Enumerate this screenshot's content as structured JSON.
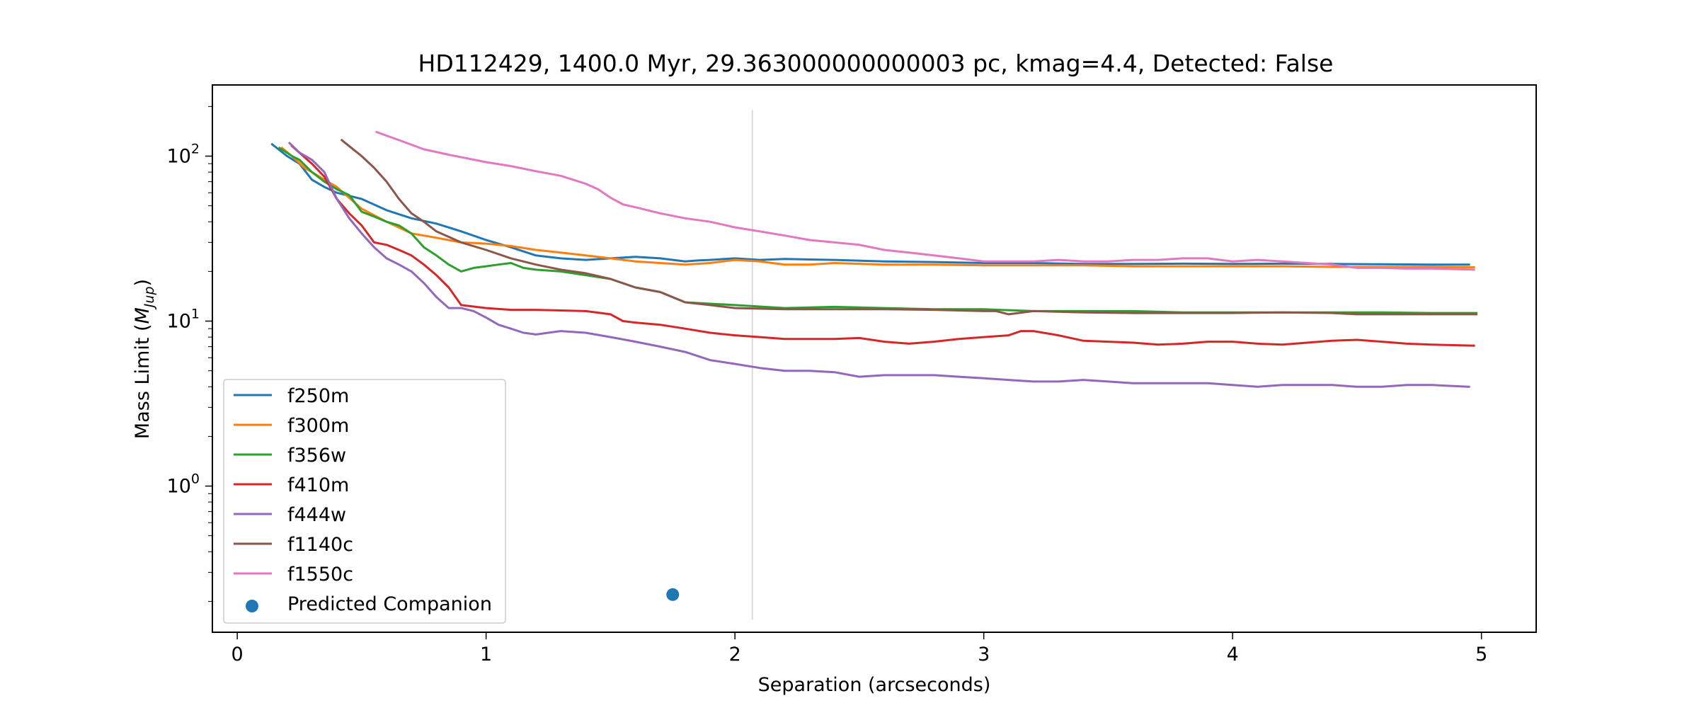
{
  "chart_data": {
    "type": "line",
    "title": "HD112429, 1400.0 Myr, 29.363000000000003 pc, kmag=4.4, Detected: False",
    "xlabel": "Separation (arcseconds)",
    "ylabel_main": "Mass Limit (",
    "ylabel_math": "M",
    "ylabel_sub": "Jup",
    "ylabel_close": ")",
    "xlim": [
      -0.1,
      5.22
    ],
    "ylim": [
      0.13,
      270
    ],
    "yscale": "log",
    "x_ticks": [
      {
        "value": 0,
        "label": "0"
      },
      {
        "value": 1,
        "label": "1"
      },
      {
        "value": 2,
        "label": "2"
      },
      {
        "value": 3,
        "label": "3"
      },
      {
        "value": 4,
        "label": "4"
      },
      {
        "value": 5,
        "label": "5"
      }
    ],
    "y_ticks": [
      {
        "value": 1,
        "base": "10",
        "exp": "0"
      },
      {
        "value": 10,
        "base": "10",
        "exp": "1"
      },
      {
        "value": 100,
        "base": "10",
        "exp": "2"
      }
    ],
    "vline": {
      "x": 2.07,
      "y_range": [
        0.155,
        190
      ],
      "color": "#d9d9d9"
    },
    "legend_position": "lower-left",
    "series": [
      {
        "name": "f250m",
        "color": "#1f77b4",
        "x": [
          0.14,
          0.2,
          0.25,
          0.3,
          0.35,
          0.4,
          0.5,
          0.6,
          0.7,
          0.8,
          0.9,
          1.0,
          1.1,
          1.2,
          1.3,
          1.4,
          1.5,
          1.6,
          1.7,
          1.8,
          1.85,
          1.9,
          2.0,
          2.1,
          2.2,
          2.4,
          2.6,
          2.8,
          3.0,
          3.2,
          3.4,
          3.6,
          3.8,
          4.0,
          4.2,
          4.4,
          4.6,
          4.8,
          4.95
        ],
        "y": [
          118,
          100,
          90,
          72,
          65,
          60,
          55,
          47,
          42,
          39,
          35,
          31,
          28,
          25,
          24,
          23.5,
          24,
          24.5,
          24,
          23,
          23.3,
          23.5,
          24,
          23.5,
          23.8,
          23.5,
          23,
          22.8,
          22.5,
          22.5,
          22.2,
          22.2,
          22.3,
          22.2,
          22.3,
          22.2,
          22.1,
          22.0,
          22.0
        ]
      },
      {
        "name": "f300m",
        "color": "#ff7f0e",
        "x": [
          0.18,
          0.22,
          0.27,
          0.3,
          0.35,
          0.4,
          0.5,
          0.6,
          0.7,
          0.8,
          0.9,
          1.0,
          1.1,
          1.2,
          1.3,
          1.4,
          1.5,
          1.6,
          1.7,
          1.8,
          1.9,
          2.0,
          2.1,
          2.2,
          2.3,
          2.4,
          2.6,
          2.8,
          3.0,
          3.2,
          3.4,
          3.6,
          3.8,
          4.0,
          4.2,
          4.4,
          4.6,
          4.8,
          4.97
        ],
        "y": [
          112,
          100,
          85,
          80,
          72,
          65,
          48,
          40,
          34,
          32,
          30,
          29.5,
          28.5,
          27,
          26,
          25,
          24,
          23,
          22.5,
          22,
          22.5,
          23.5,
          23,
          22,
          22,
          22.5,
          22,
          22,
          21.8,
          21.8,
          21.8,
          21.5,
          21.5,
          21.5,
          21.5,
          21.3,
          21.3,
          21.3,
          21.2
        ]
      },
      {
        "name": "f356w",
        "color": "#2ca02c",
        "x": [
          0.17,
          0.22,
          0.25,
          0.3,
          0.35,
          0.4,
          0.45,
          0.5,
          0.55,
          0.6,
          0.65,
          0.7,
          0.75,
          0.8,
          0.85,
          0.9,
          0.95,
          1.0,
          1.05,
          1.1,
          1.15,
          1.2,
          1.3,
          1.4,
          1.5,
          1.6,
          1.7,
          1.8,
          2.0,
          2.2,
          2.4,
          2.6,
          2.8,
          3.0,
          3.2,
          3.4,
          3.6,
          3.8,
          4.0,
          4.2,
          4.4,
          4.6,
          4.8,
          4.98
        ],
        "y": [
          112,
          100,
          95,
          80,
          70,
          63,
          58,
          46,
          43,
          40,
          38,
          34,
          28,
          25,
          22,
          20,
          21,
          21.5,
          22,
          22.5,
          21,
          20.5,
          20,
          19,
          18,
          16,
          15,
          13,
          12.5,
          12,
          12.2,
          12,
          11.8,
          11.8,
          11.5,
          11.5,
          11.5,
          11.3,
          11.3,
          11.3,
          11.3,
          11.3,
          11.2,
          11.2
        ]
      },
      {
        "name": "f410m",
        "color": "#d62728",
        "x": [
          0.22,
          0.3,
          0.35,
          0.4,
          0.45,
          0.5,
          0.55,
          0.6,
          0.65,
          0.7,
          0.75,
          0.8,
          0.85,
          0.9,
          1.0,
          1.1,
          1.2,
          1.3,
          1.4,
          1.5,
          1.55,
          1.6,
          1.7,
          1.8,
          1.9,
          2.0,
          2.1,
          2.2,
          2.3,
          2.4,
          2.5,
          2.6,
          2.7,
          2.8,
          2.9,
          3.0,
          3.1,
          3.15,
          3.2,
          3.3,
          3.4,
          3.5,
          3.6,
          3.7,
          3.8,
          3.9,
          4.0,
          4.1,
          4.2,
          4.3,
          4.4,
          4.5,
          4.6,
          4.7,
          4.8,
          4.97
        ],
        "y": [
          115,
          90,
          75,
          55,
          45,
          38,
          30,
          29,
          27,
          25,
          22,
          19,
          16,
          12.5,
          12,
          11.7,
          11.7,
          11.6,
          11.5,
          11,
          10,
          9.8,
          9.5,
          9,
          8.5,
          8.2,
          8,
          7.8,
          7.8,
          7.8,
          7.9,
          7.5,
          7.3,
          7.5,
          7.8,
          8,
          8.2,
          8.7,
          8.7,
          8.2,
          7.6,
          7.5,
          7.4,
          7.2,
          7.3,
          7.5,
          7.5,
          7.3,
          7.2,
          7.4,
          7.6,
          7.7,
          7.5,
          7.3,
          7.2,
          7.1
        ]
      },
      {
        "name": "f444w",
        "color": "#9467bd",
        "x": [
          0.21,
          0.25,
          0.3,
          0.35,
          0.4,
          0.45,
          0.5,
          0.55,
          0.6,
          0.65,
          0.7,
          0.75,
          0.8,
          0.85,
          0.9,
          0.95,
          1.0,
          1.05,
          1.1,
          1.15,
          1.2,
          1.25,
          1.3,
          1.4,
          1.5,
          1.6,
          1.7,
          1.8,
          1.9,
          2.0,
          2.1,
          2.2,
          2.3,
          2.4,
          2.5,
          2.6,
          2.7,
          2.8,
          2.9,
          3.0,
          3.1,
          3.2,
          3.3,
          3.4,
          3.5,
          3.6,
          3.7,
          3.8,
          3.9,
          4.0,
          4.1,
          4.2,
          4.3,
          4.4,
          4.5,
          4.6,
          4.7,
          4.8,
          4.95
        ],
        "y": [
          120,
          105,
          95,
          80,
          55,
          42,
          34,
          28,
          24,
          22,
          20,
          17,
          14,
          12,
          12,
          11.5,
          10.5,
          9.5,
          9,
          8.5,
          8.3,
          8.5,
          8.7,
          8.5,
          8,
          7.5,
          7,
          6.5,
          5.8,
          5.5,
          5.2,
          5.0,
          5.0,
          4.9,
          4.6,
          4.7,
          4.7,
          4.7,
          4.6,
          4.5,
          4.4,
          4.3,
          4.3,
          4.4,
          4.3,
          4.2,
          4.2,
          4.2,
          4.2,
          4.1,
          4.0,
          4.1,
          4.1,
          4.1,
          4.0,
          4.0,
          4.1,
          4.1,
          4.0
        ]
      },
      {
        "name": "f1140c",
        "color": "#8c564b",
        "x": [
          0.42,
          0.45,
          0.5,
          0.55,
          0.6,
          0.65,
          0.7,
          0.75,
          0.8,
          0.9,
          1.0,
          1.1,
          1.2,
          1.3,
          1.4,
          1.5,
          1.6,
          1.7,
          1.8,
          1.9,
          2.0,
          2.2,
          2.4,
          2.6,
          2.8,
          3.0,
          3.05,
          3.1,
          3.2,
          3.4,
          3.6,
          3.8,
          4.0,
          4.2,
          4.4,
          4.5,
          4.6,
          4.8,
          4.98
        ],
        "y": [
          125,
          115,
          100,
          85,
          70,
          55,
          45,
          40,
          35,
          30,
          27,
          24,
          22,
          20.5,
          19.5,
          18,
          16,
          15,
          13,
          12.5,
          12,
          11.8,
          11.8,
          11.8,
          11.7,
          11.5,
          11.5,
          11,
          11.5,
          11.3,
          11.2,
          11.2,
          11.2,
          11.3,
          11.2,
          11.0,
          11.0,
          11.0,
          11.0
        ]
      },
      {
        "name": "f1550c",
        "color": "#e377c2",
        "x": [
          0.56,
          0.65,
          0.75,
          0.85,
          1.0,
          1.1,
          1.2,
          1.3,
          1.4,
          1.45,
          1.5,
          1.55,
          1.6,
          1.7,
          1.8,
          1.9,
          2.0,
          2.1,
          2.2,
          2.3,
          2.4,
          2.5,
          2.6,
          2.7,
          2.8,
          2.9,
          3.0,
          3.1,
          3.2,
          3.3,
          3.4,
          3.5,
          3.6,
          3.7,
          3.8,
          3.9,
          4.0,
          4.1,
          4.2,
          4.3,
          4.4,
          4.5,
          4.6,
          4.7,
          4.8,
          4.97
        ],
        "y": [
          140,
          125,
          110,
          102,
          92,
          87,
          81,
          76,
          68,
          63,
          56,
          51,
          49,
          45,
          42,
          40,
          37,
          35,
          33,
          31,
          30,
          29,
          27,
          26,
          25,
          24,
          23,
          23,
          23,
          23.5,
          23,
          23,
          23.5,
          23.5,
          24,
          24,
          23,
          23.5,
          23,
          22.5,
          22,
          21,
          21,
          20.8,
          20.8,
          20.5
        ]
      }
    ],
    "scatter": {
      "name": "Predicted Companion",
      "color": "#1f77b4",
      "x": [
        1.75
      ],
      "y": [
        0.22
      ]
    }
  }
}
